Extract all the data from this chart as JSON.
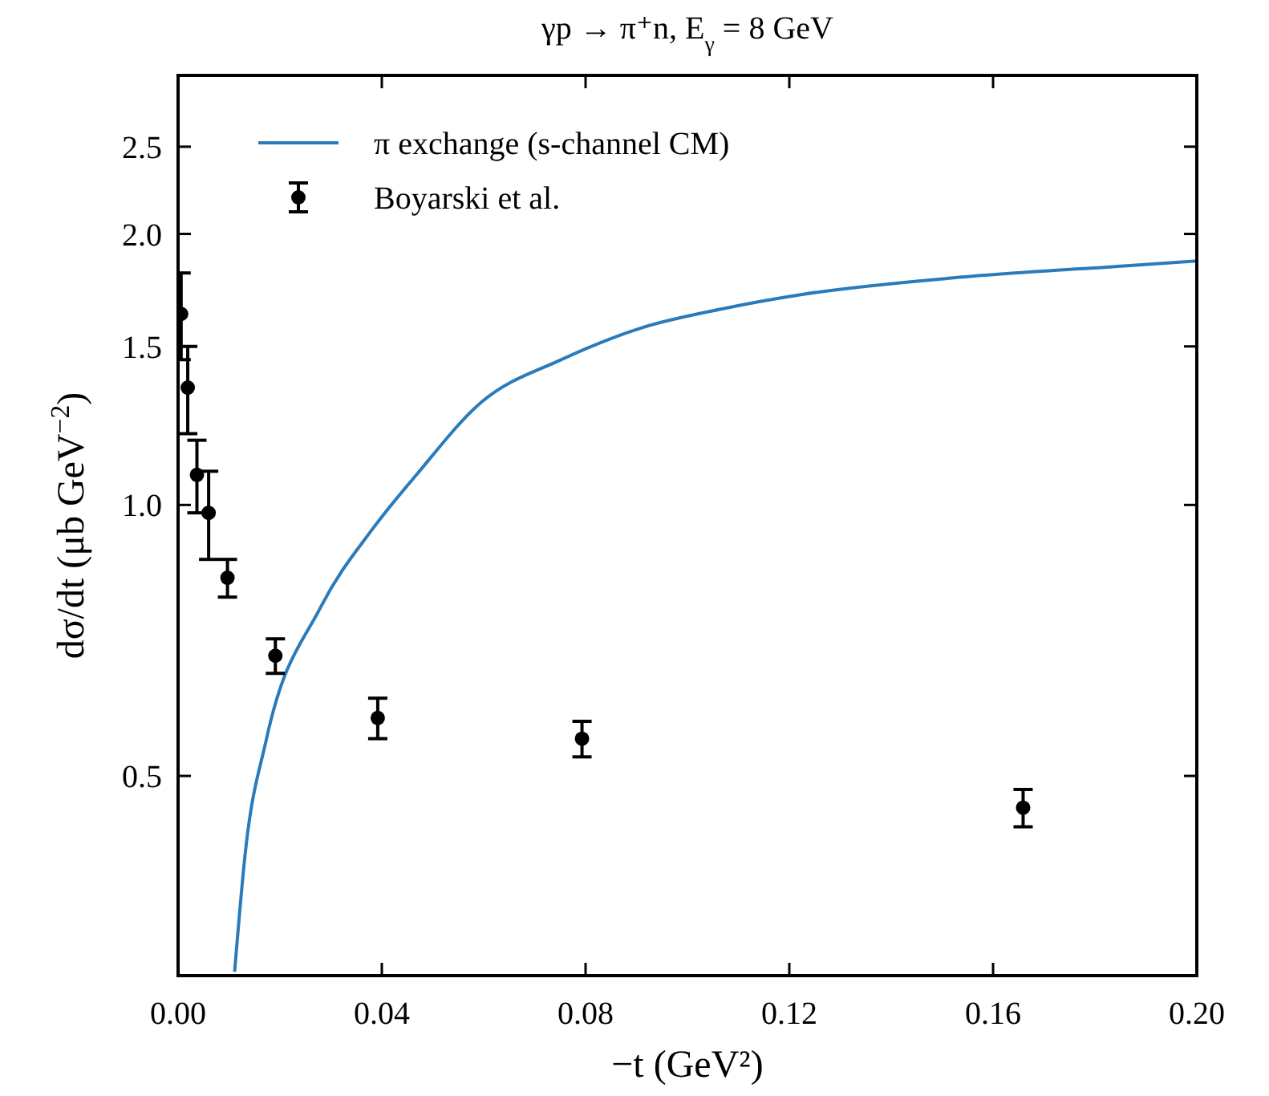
{
  "chart_data": {
    "type": "line",
    "title": "γp → π⁺n,  E$_{γ}$ = 8 GeV",
    "xlabel": "−t (GeV²)",
    "ylabel": "dσ/dt (μb GeV$^{−2}$)",
    "log": "y",
    "xlim": [
      0,
      0.2
    ],
    "ylim": [
      0.3,
      3.0
    ],
    "xticks": [
      {
        "value": 0,
        "label": "0.00"
      },
      {
        "value": 0.04,
        "label": "0.04"
      },
      {
        "value": 0.08,
        "label": "0.08"
      },
      {
        "value": 0.12,
        "label": "0.12"
      },
      {
        "value": 0.16,
        "label": "0.16"
      },
      {
        "value": 0.2,
        "label": "0.20"
      }
    ],
    "yticks": [
      {
        "value": 0.5,
        "label": "0.5"
      },
      {
        "value": 1,
        "label": "1.0"
      },
      {
        "value": 1.5,
        "label": "1.5"
      },
      {
        "value": 2,
        "label": "2.0"
      },
      {
        "value": 2.5,
        "label": "2.5"
      }
    ],
    "grid": false,
    "legend": "top left",
    "series": [
      {
        "name": "π exchange (s-channel CM)",
        "color": "#2b7bba",
        "marker": "none",
        "line_style": "solid",
        "x": [
          0.0111,
          0.0132,
          0.0173,
          0.028,
          0.0384,
          0.0469,
          0.0595,
          0.0751,
          0.091,
          0.1068,
          0.1225,
          0.154,
          0.1857,
          0.2
        ],
        "values": [
          0.303,
          0.411,
          0.548,
          0.77,
          0.944,
          1.082,
          1.3,
          1.449,
          1.573,
          1.651,
          1.713,
          1.791,
          1.843,
          1.866
        ]
      },
      {
        "name": "Boyarski et al.",
        "type": "scatter",
        "color": "#000000",
        "marker": "circle",
        "x": [
          0.0006,
          0.0019,
          0.0037,
          0.006,
          0.0097,
          0.0191,
          0.0392,
          0.0793,
          0.1659
        ],
        "values": [
          1.63,
          1.35,
          1.08,
          0.98,
          0.83,
          0.68,
          0.58,
          0.55,
          0.461
        ],
        "errors": [
          0.18,
          0.15,
          0.1,
          0.11,
          0.04,
          0.03,
          0.03,
          0.025,
          0.022
        ]
      }
    ]
  }
}
